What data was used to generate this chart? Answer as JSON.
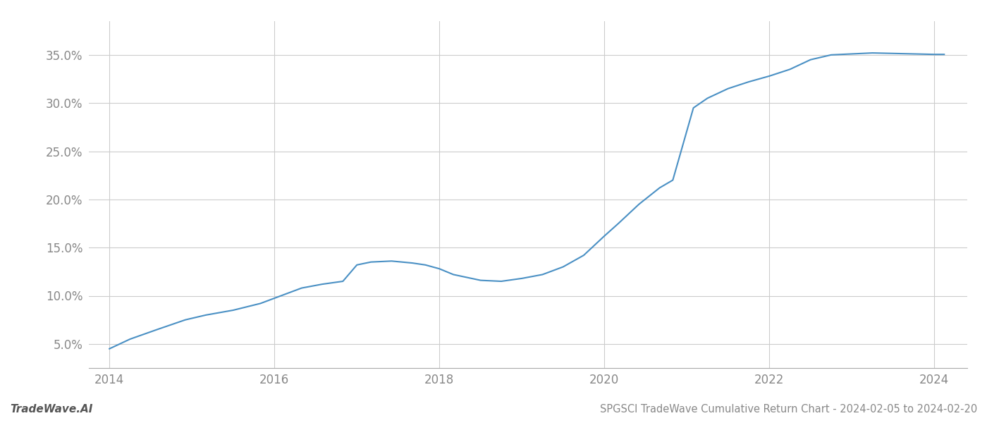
{
  "title": "SPGSCI TradeWave Cumulative Return Chart - 2024-02-05 to 2024-02-20",
  "watermark": "TradeWave.AI",
  "line_color": "#4a90c4",
  "background_color": "#ffffff",
  "grid_color": "#cccccc",
  "x_values": [
    2014.0,
    2014.25,
    2014.58,
    2014.92,
    2015.17,
    2015.5,
    2015.83,
    2016.08,
    2016.33,
    2016.58,
    2016.83,
    2017.0,
    2017.17,
    2017.42,
    2017.67,
    2017.83,
    2018.0,
    2018.17,
    2018.5,
    2018.75,
    2019.0,
    2019.25,
    2019.5,
    2019.75,
    2020.0,
    2020.17,
    2020.42,
    2020.67,
    2020.83,
    2021.08,
    2021.25,
    2021.5,
    2021.75,
    2022.0,
    2022.25,
    2022.5,
    2022.75,
    2023.0,
    2023.25,
    2023.5,
    2023.75,
    2024.0,
    2024.12
  ],
  "y_values": [
    4.5,
    5.5,
    6.5,
    7.5,
    8.0,
    8.5,
    9.2,
    10.0,
    10.8,
    11.2,
    11.5,
    13.2,
    13.5,
    13.6,
    13.4,
    13.2,
    12.8,
    12.2,
    11.6,
    11.5,
    11.8,
    12.2,
    13.0,
    14.2,
    16.2,
    17.5,
    19.5,
    21.2,
    22.0,
    29.5,
    30.5,
    31.5,
    32.2,
    32.8,
    33.5,
    34.5,
    35.0,
    35.1,
    35.2,
    35.15,
    35.1,
    35.05,
    35.05
  ],
  "xlim": [
    2013.75,
    2024.4
  ],
  "ylim": [
    2.5,
    38.5
  ],
  "xticks": [
    2014,
    2016,
    2018,
    2020,
    2022,
    2024
  ],
  "yticks": [
    5.0,
    10.0,
    15.0,
    20.0,
    25.0,
    30.0,
    35.0
  ],
  "line_width": 1.5,
  "title_fontsize": 10.5,
  "tick_fontsize": 12,
  "watermark_fontsize": 11
}
